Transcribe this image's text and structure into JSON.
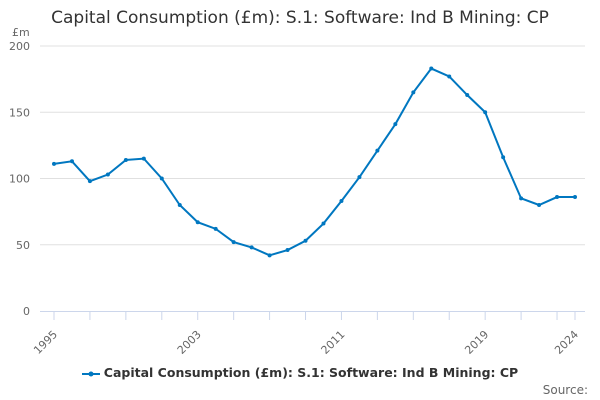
{
  "chart_data": {
    "type": "line",
    "title": "Capital Consumption (£m): S.1: Software: Ind B Mining: CP",
    "ylabel": "£m",
    "xlabel": "",
    "ylim": [
      0,
      200
    ],
    "yticks": [
      0,
      50,
      100,
      150,
      200
    ],
    "xtick_labels": [
      "1995",
      "2003",
      "2011",
      "2019",
      "2024"
    ],
    "grid": true,
    "legend_position": "bottom",
    "x": [
      1995,
      1996,
      1997,
      1998,
      1999,
      2000,
      2001,
      2002,
      2003,
      2004,
      2005,
      2006,
      2007,
      2008,
      2009,
      2010,
      2011,
      2012,
      2013,
      2014,
      2015,
      2016,
      2017,
      2018,
      2019,
      2020,
      2021,
      2022,
      2023,
      2024
    ],
    "series": [
      {
        "name": "Capital Consumption (£m): S.1: Software: Ind B Mining: CP",
        "color": "#0077c0",
        "values": [
          111,
          113,
          98,
          103,
          114,
          115,
          100,
          80,
          67,
          62,
          52,
          48,
          42,
          46,
          53,
          66,
          83,
          101,
          121,
          141,
          165,
          183,
          177,
          163,
          150,
          116,
          85,
          80,
          86,
          86
        ]
      }
    ]
  },
  "source_label": "Source:"
}
